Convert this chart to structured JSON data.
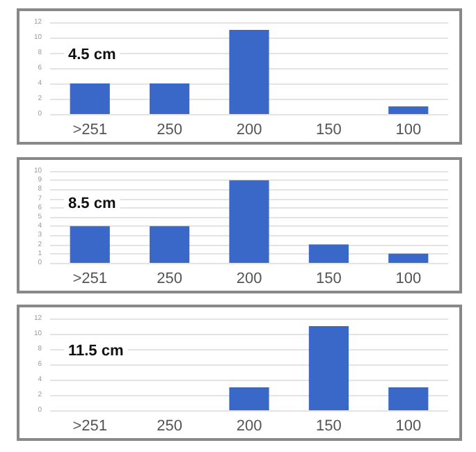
{
  "chart_data": [
    {
      "type": "bar",
      "annotations": [
        "4.5 cm"
      ],
      "categories": [
        ">251",
        "250",
        "200",
        "150",
        "100"
      ],
      "values": [
        4,
        4,
        11,
        0,
        1
      ],
      "color": "#3a68c8",
      "ylim": [
        0,
        12
      ],
      "yticks": [
        0,
        2,
        4,
        6,
        8,
        10,
        12
      ],
      "grid": "y"
    },
    {
      "type": "bar",
      "annotations": [
        "8.5 cm"
      ],
      "categories": [
        ">251",
        "250",
        "200",
        "150",
        "100"
      ],
      "values": [
        4,
        4,
        9,
        2,
        1
      ],
      "color": "#3a68c8",
      "ylim": [
        0,
        10
      ],
      "yticks": [
        0,
        1,
        2,
        3,
        4,
        5,
        6,
        7,
        8,
        9,
        10
      ],
      "grid": "y"
    },
    {
      "type": "bar",
      "annotations": [
        "11.5 cm"
      ],
      "categories": [
        ">251",
        "250",
        "200",
        "150",
        "100"
      ],
      "values": [
        0,
        0,
        3,
        11,
        3
      ],
      "color": "#3a68c8",
      "ylim": [
        0,
        12
      ],
      "yticks": [
        0,
        2,
        4,
        6,
        8,
        10,
        12
      ],
      "grid": "y"
    }
  ]
}
